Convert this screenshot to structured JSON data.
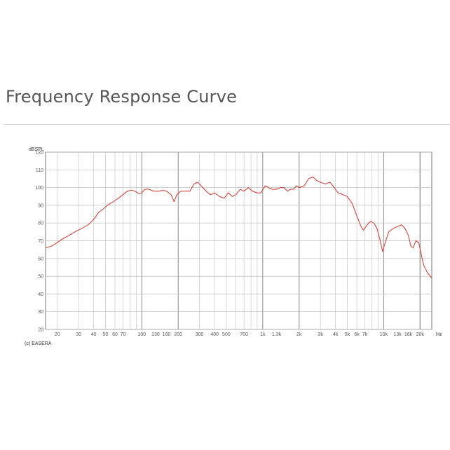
{
  "page": {
    "title": "Frequency Response Curve"
  },
  "chart_data": {
    "type": "line",
    "title": "",
    "ylabel": "dBSPL",
    "xlabel_unit": "Hz",
    "copyright": "(c) EASERA",
    "x_scale": "log",
    "xlim": [
      16,
      25000
    ],
    "ylim": [
      20,
      120
    ],
    "y_ticks": [
      20,
      30,
      40,
      50,
      60,
      70,
      80,
      90,
      100,
      110,
      120
    ],
    "x_ticks": [
      {
        "value": 20,
        "label": "20"
      },
      {
        "value": 30,
        "label": "30"
      },
      {
        "value": 40,
        "label": "40"
      },
      {
        "value": 50,
        "label": "50"
      },
      {
        "value": 60,
        "label": "60"
      },
      {
        "value": 70,
        "label": "70"
      },
      {
        "value": 100,
        "label": "100"
      },
      {
        "value": 130,
        "label": "130"
      },
      {
        "value": 160,
        "label": "160"
      },
      {
        "value": 200,
        "label": "200"
      },
      {
        "value": 300,
        "label": "300"
      },
      {
        "value": 400,
        "label": "400"
      },
      {
        "value": 500,
        "label": "500"
      },
      {
        "value": 700,
        "label": "700"
      },
      {
        "value": 1000,
        "label": "1k"
      },
      {
        "value": 1300,
        "label": "1.3k"
      },
      {
        "value": 2000,
        "label": "2k"
      },
      {
        "value": 3000,
        "label": "3k"
      },
      {
        "value": 4000,
        "label": "4k"
      },
      {
        "value": 5000,
        "label": "5k"
      },
      {
        "value": 6000,
        "label": "6k"
      },
      {
        "value": 7000,
        "label": "7k"
      },
      {
        "value": 10000,
        "label": "10k"
      },
      {
        "value": 13000,
        "label": "13k"
      },
      {
        "value": 16000,
        "label": "16k"
      },
      {
        "value": 20000,
        "label": "20k"
      }
    ],
    "series": [
      {
        "color": "#d0473f",
        "points": [
          [
            16,
            66
          ],
          [
            18,
            67
          ],
          [
            20,
            69
          ],
          [
            22,
            71
          ],
          [
            25,
            73
          ],
          [
            28,
            75
          ],
          [
            32,
            77
          ],
          [
            36,
            79
          ],
          [
            40,
            82
          ],
          [
            44,
            86
          ],
          [
            48,
            88
          ],
          [
            52,
            90
          ],
          [
            58,
            92
          ],
          [
            64,
            94
          ],
          [
            70,
            96
          ],
          [
            76,
            98
          ],
          [
            82,
            98.5
          ],
          [
            88,
            98
          ],
          [
            95,
            96.5
          ],
          [
            100,
            97
          ],
          [
            106,
            99
          ],
          [
            115,
            99
          ],
          [
            125,
            98
          ],
          [
            140,
            98
          ],
          [
            150,
            98.5
          ],
          [
            160,
            98
          ],
          [
            175,
            96
          ],
          [
            185,
            92
          ],
          [
            195,
            96
          ],
          [
            210,
            98
          ],
          [
            230,
            98
          ],
          [
            250,
            98
          ],
          [
            270,
            102
          ],
          [
            290,
            103
          ],
          [
            310,
            101
          ],
          [
            340,
            98
          ],
          [
            370,
            96
          ],
          [
            400,
            97
          ],
          [
            440,
            95
          ],
          [
            480,
            94
          ],
          [
            520,
            97
          ],
          [
            560,
            95
          ],
          [
            600,
            96
          ],
          [
            650,
            99
          ],
          [
            700,
            98
          ],
          [
            760,
            100
          ],
          [
            820,
            98
          ],
          [
            900,
            97
          ],
          [
            960,
            97
          ],
          [
            1050,
            101
          ],
          [
            1120,
            100
          ],
          [
            1200,
            99
          ],
          [
            1300,
            99
          ],
          [
            1400,
            100
          ],
          [
            1500,
            100
          ],
          [
            1600,
            98
          ],
          [
            1700,
            99
          ],
          [
            1800,
            99
          ],
          [
            1900,
            101
          ],
          [
            2000,
            100
          ],
          [
            2200,
            101
          ],
          [
            2400,
            105
          ],
          [
            2600,
            106
          ],
          [
            2800,
            104
          ],
          [
            3000,
            103
          ],
          [
            3300,
            102
          ],
          [
            3600,
            103
          ],
          [
            3900,
            100
          ],
          [
            4200,
            97
          ],
          [
            4600,
            96
          ],
          [
            5000,
            95
          ],
          [
            5500,
            91
          ],
          [
            6000,
            84
          ],
          [
            6500,
            78
          ],
          [
            6800,
            76
          ],
          [
            7300,
            79
          ],
          [
            7800,
            81
          ],
          [
            8300,
            80
          ],
          [
            8800,
            77
          ],
          [
            9300,
            71
          ],
          [
            9800,
            64
          ],
          [
            10300,
            69
          ],
          [
            11000,
            75
          ],
          [
            12000,
            77
          ],
          [
            13000,
            78
          ],
          [
            14000,
            79
          ],
          [
            15000,
            77
          ],
          [
            16000,
            73
          ],
          [
            16800,
            67
          ],
          [
            17500,
            66
          ],
          [
            18500,
            70
          ],
          [
            19500,
            69
          ],
          [
            20500,
            62
          ],
          [
            21500,
            56
          ],
          [
            23000,
            52
          ],
          [
            25000,
            49
          ]
        ]
      }
    ],
    "grid": true
  }
}
